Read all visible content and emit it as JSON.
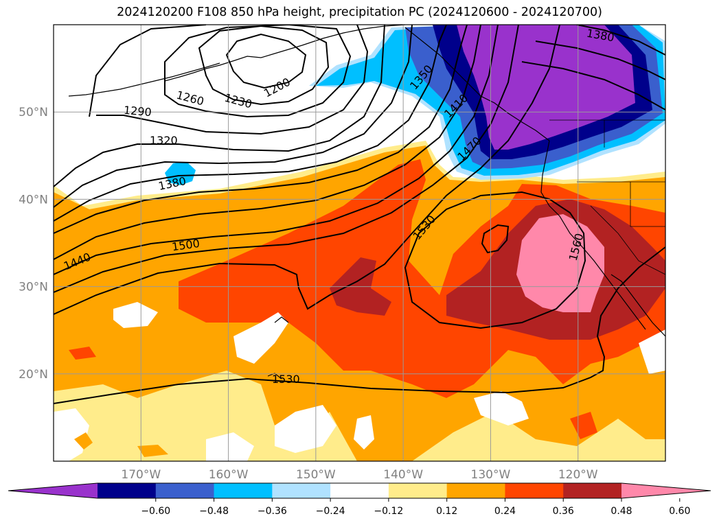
{
  "title": "2024120200 F108 850 hPa height, precipitation PC (2024120600 - 2024120700)",
  "map": {
    "lon_range": [
      -180,
      -110
    ],
    "lat_range": [
      10,
      60
    ],
    "lat_ticks": [
      {
        "value": 50,
        "label": "50°N"
      },
      {
        "value": 40,
        "label": "40°N"
      },
      {
        "value": 30,
        "label": "30°N"
      },
      {
        "value": 20,
        "label": "20°N"
      }
    ],
    "lon_ticks": [
      {
        "value": -170,
        "label": "170°W"
      },
      {
        "value": -160,
        "label": "160°W"
      },
      {
        "value": -150,
        "label": "150°W"
      },
      {
        "value": -140,
        "label": "140°W"
      },
      {
        "value": -130,
        "label": "130°W"
      },
      {
        "value": -120,
        "label": "120°W"
      }
    ],
    "gridlines": true
  },
  "height_contours": {
    "variable": "850 hPa height",
    "labels": [
      "1200",
      "1230",
      "1260",
      "1290",
      "1320",
      "1350",
      "1380",
      "1380",
      "1410",
      "1440",
      "1470",
      "1500",
      "1530",
      "1530",
      "1560"
    ]
  },
  "colorbar": {
    "variable": "precipitation PC",
    "ticks": [
      "−0.60",
      "−0.48",
      "−0.36",
      "−0.24",
      "−0.12",
      "0.12",
      "0.24",
      "0.36",
      "0.48",
      "0.60"
    ],
    "colors": [
      "#9932cc",
      "#00008b",
      "#3a5fcd",
      "#00bfff",
      "#b0e2ff",
      "#ffffff",
      "#ffec8b",
      "#ffa500",
      "#ff4500",
      "#b22222",
      "#ff88aa"
    ],
    "extend": "both"
  }
}
